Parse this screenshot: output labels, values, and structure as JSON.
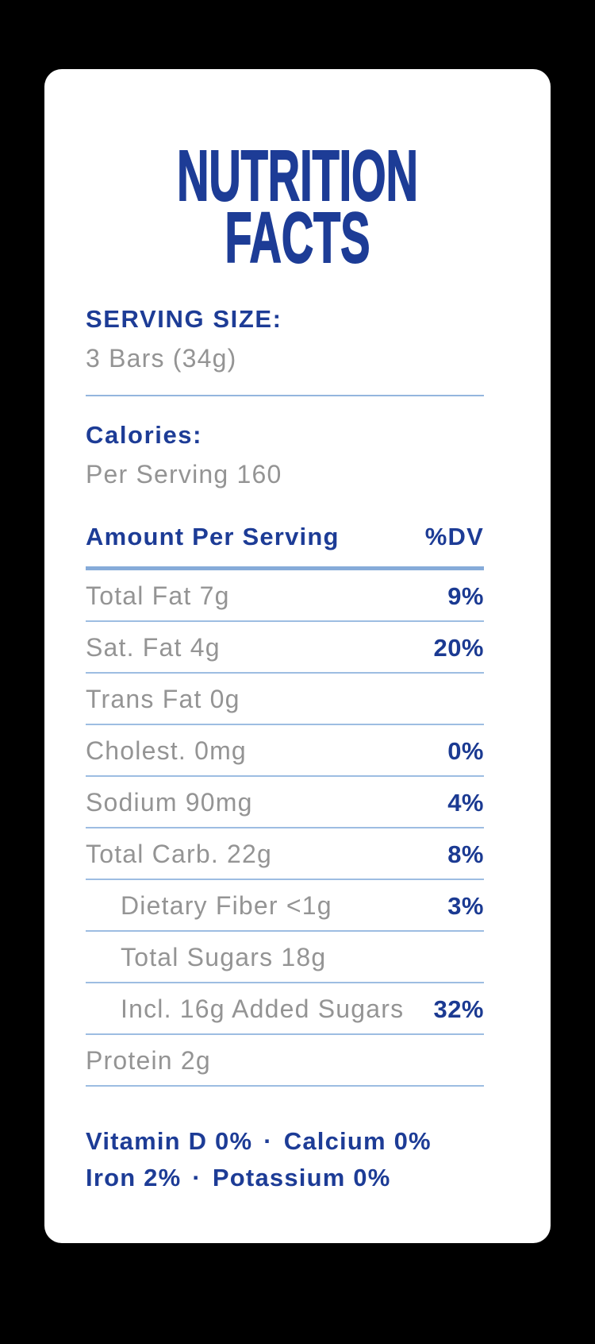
{
  "colors": {
    "background": "#000000",
    "card": "#ffffff",
    "accent_blue": "#1d3c96",
    "value_blue": "#1b3a92",
    "label_gray": "#949494",
    "thin_line_blue": "#9dbde2",
    "thick_line_blue": "#86abd9"
  },
  "title": {
    "line1": "NUTRITION",
    "line2": "FACTS"
  },
  "serving_size": {
    "label": "SERVING SIZE:",
    "value": "3 Bars (34g)"
  },
  "calories": {
    "label": "Calories:",
    "value": "Per Serving 160"
  },
  "table": {
    "header": {
      "amount_label": "Amount Per Serving",
      "dv_label": "%DV"
    },
    "rows": [
      {
        "label": "Total Fat 7g",
        "value": "9%"
      },
      {
        "label": "Sat. Fat 4g",
        "value": "20%"
      },
      {
        "label": "Trans Fat 0g",
        "value": ""
      },
      {
        "label": "Cholest. 0mg",
        "value": "0%"
      },
      {
        "label": "Sodium 90mg",
        "value": "4%"
      },
      {
        "label": "Total Carb. 22g",
        "value": "8%"
      },
      {
        "label": "Dietary Fiber <1g",
        "value": "3%"
      },
      {
        "label": "Total Sugars 18g",
        "value": ""
      },
      {
        "label": "Incl. 16g Added Sugars",
        "value": "32%"
      },
      {
        "label": "Protein 2g",
        "value": ""
      }
    ]
  },
  "micronutrients": {
    "separator": "·",
    "line1": {
      "item1": "Vitamin D 0%",
      "item2": "Calcium 0%"
    },
    "line2": {
      "item1": "Iron 2%",
      "item2": "Potassium 0%"
    }
  }
}
